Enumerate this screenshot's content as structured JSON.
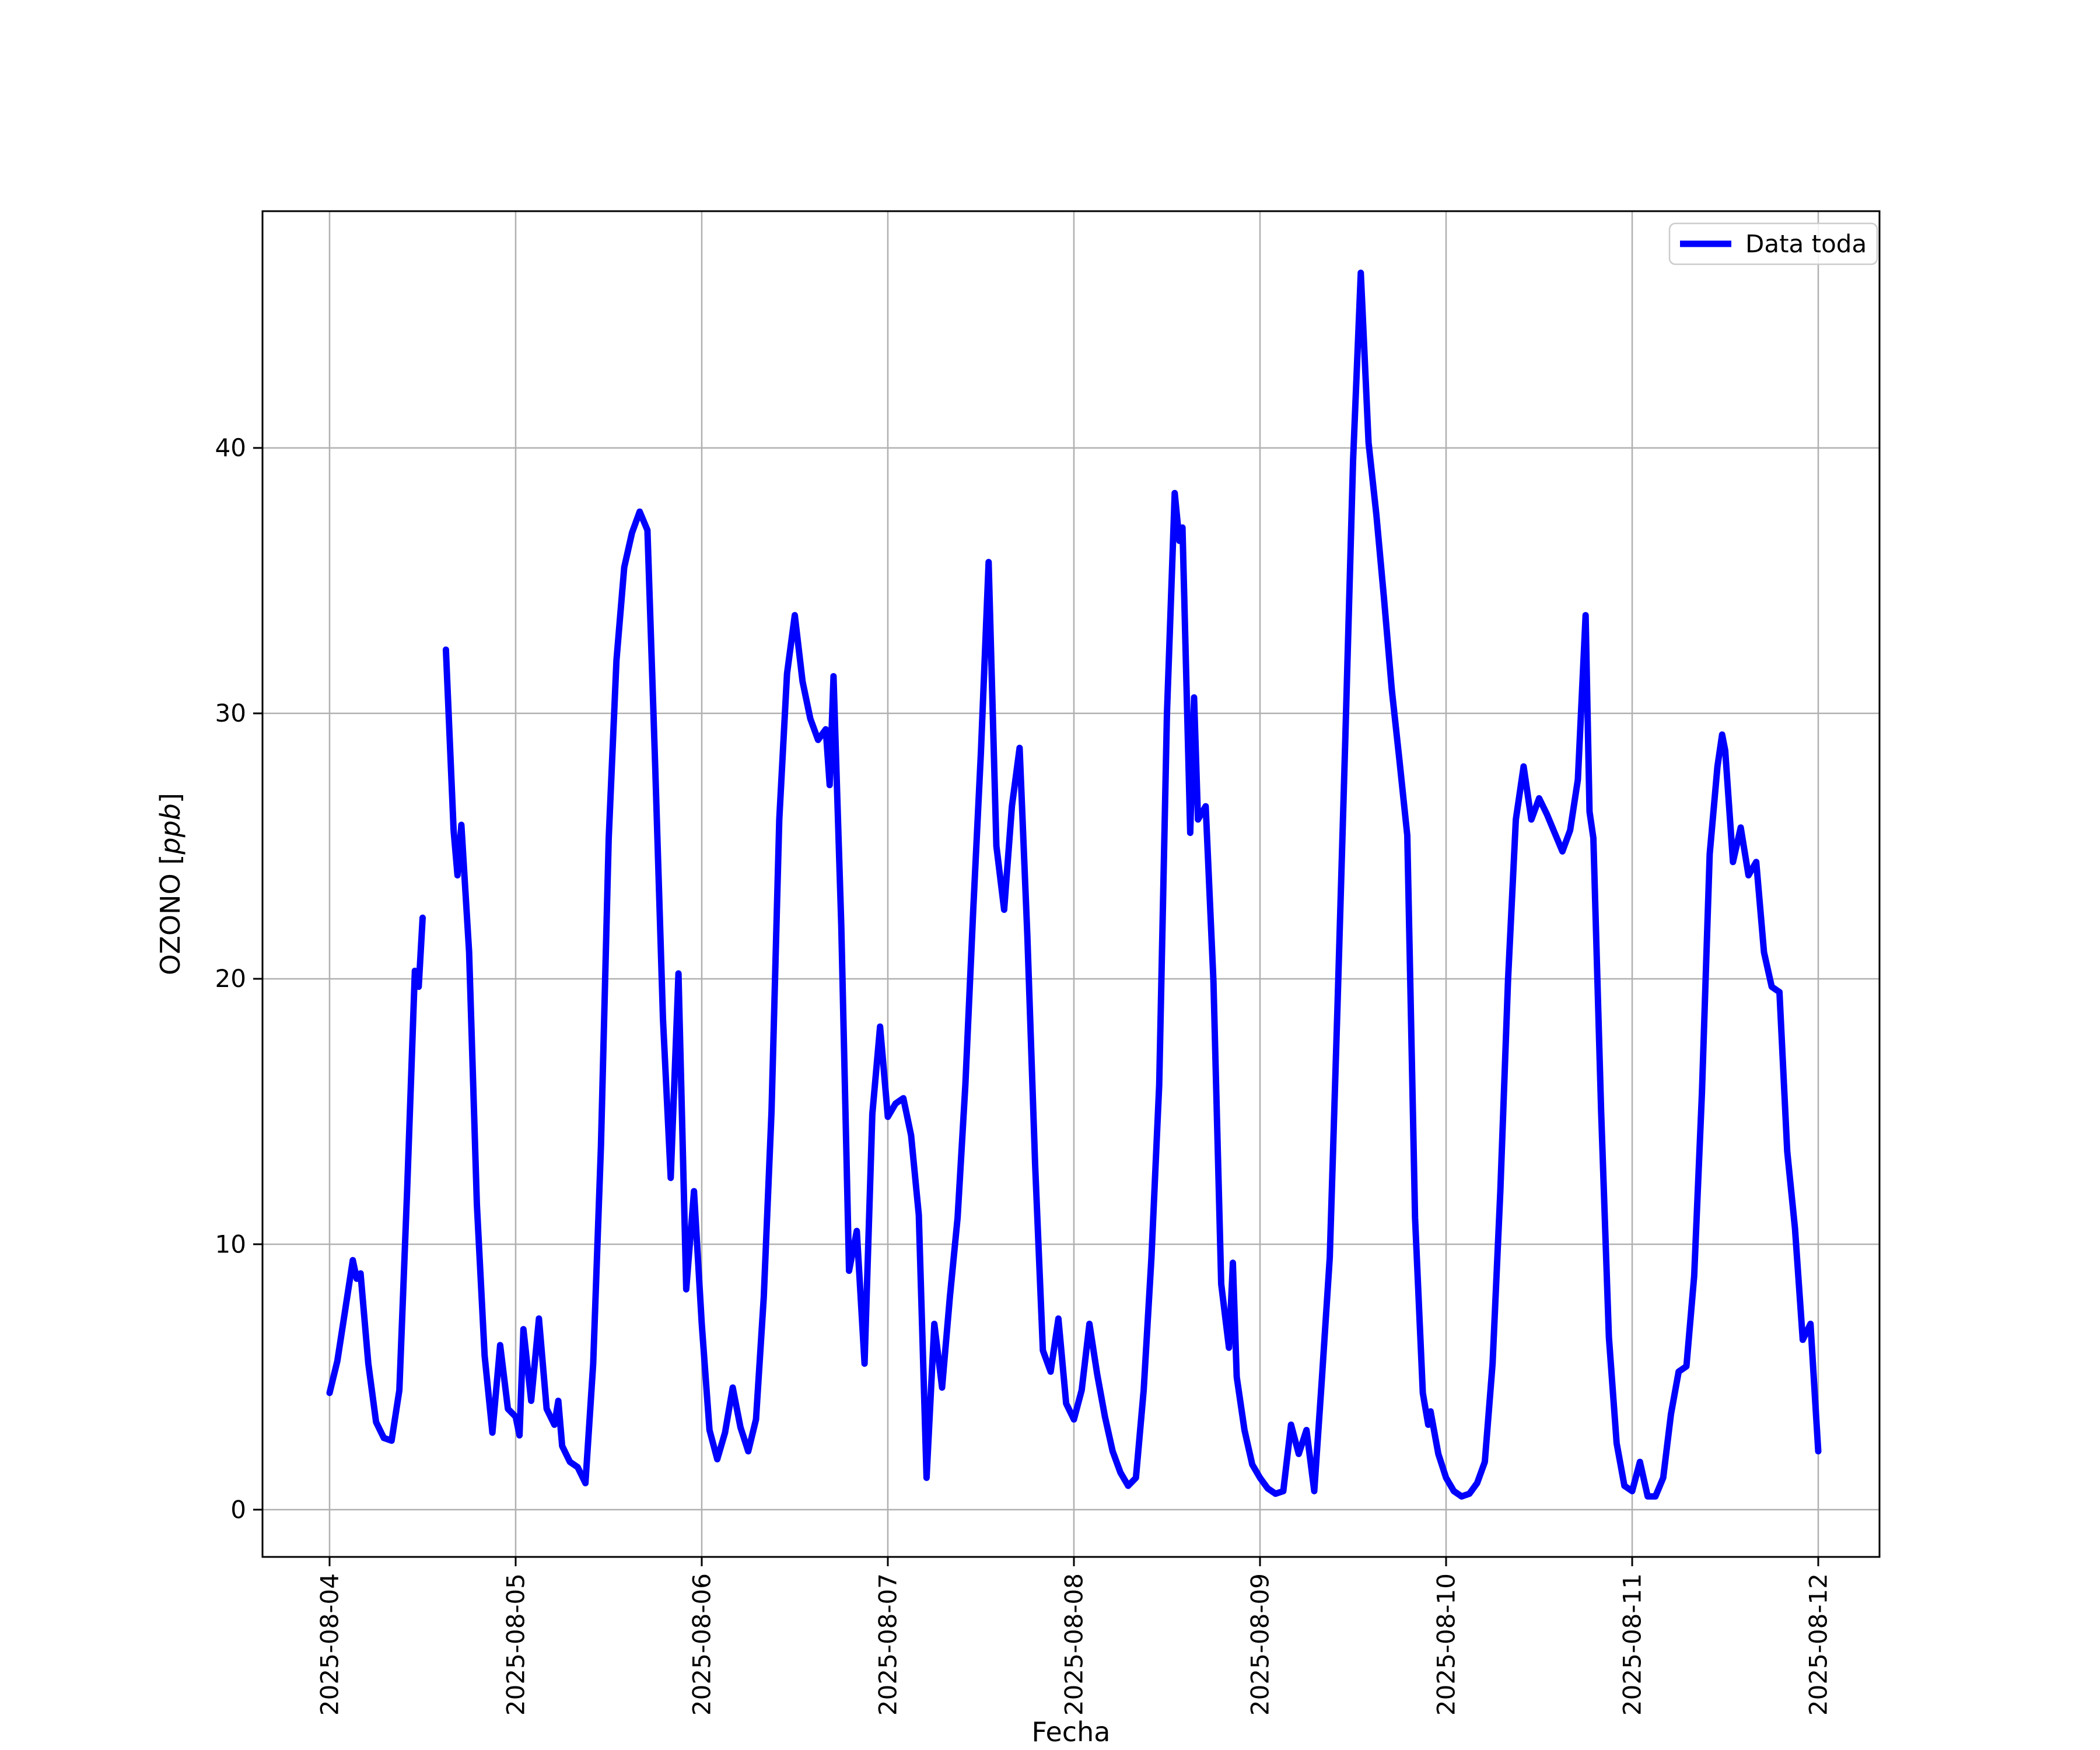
{
  "chart_data": {
    "type": "line",
    "title": "",
    "xlabel": "Fecha",
    "ylabel": "OZONO [ppb]",
    "ylabel_parts": {
      "prefix": "OZONO [",
      "unit": "ppb",
      "suffix": "]"
    },
    "legend": {
      "position": "upper right",
      "entries": [
        {
          "label": "Data toda",
          "color": "#0000ff"
        }
      ]
    },
    "grid": true,
    "grid_color": "#b0b0b0",
    "line_color": "#0000ff",
    "x_unit": "hours since 2025-08-04 00:00",
    "x_tick_hours": [
      0,
      24,
      48,
      72,
      96,
      120,
      144,
      168,
      192
    ],
    "x_tick_labels": [
      "2025-08-04",
      "2025-08-05",
      "2025-08-06",
      "2025-08-07",
      "2025-08-08",
      "2025-08-09",
      "2025-08-10",
      "2025-08-11",
      "2025-08-12"
    ],
    "y_ticks": [
      0,
      10,
      20,
      30,
      40
    ],
    "y_tick_labels": [
      "0",
      "10",
      "20",
      "30",
      "40"
    ],
    "xlim_hours": [
      -8.65,
      199.9
    ],
    "ylim": [
      -1.78,
      48.92
    ],
    "series": [
      {
        "name": "Data toda",
        "segments": [
          [
            [
              0,
              4.4
            ],
            [
              1,
              5.6
            ],
            [
              2,
              7.5
            ],
            [
              3,
              9.4
            ],
            [
              3.5,
              8.7
            ],
            [
              4,
              8.9
            ],
            [
              5,
              5.5
            ],
            [
              6,
              3.3
            ],
            [
              7,
              2.7
            ],
            [
              8,
              2.6
            ],
            [
              9,
              4.5
            ],
            [
              10,
              12
            ],
            [
              11,
              20.3
            ],
            [
              11.5,
              19.7
            ],
            [
              12,
              22.3
            ]
          ],
          [
            [
              15,
              32.4
            ],
            [
              16,
              25.6
            ],
            [
              16.5,
              23.9
            ],
            [
              17,
              25.8
            ],
            [
              18,
              21
            ],
            [
              19,
              11.5
            ],
            [
              20,
              5.8
            ],
            [
              21,
              2.9
            ],
            [
              22,
              6.2
            ],
            [
              23,
              3.8
            ],
            [
              24,
              3.5
            ],
            [
              24.5,
              2.8
            ],
            [
              25,
              6.8
            ],
            [
              26,
              4.1
            ],
            [
              27,
              7.2
            ],
            [
              28,
              3.8
            ],
            [
              29,
              3.2
            ],
            [
              29.5,
              4.1
            ],
            [
              30,
              2.4
            ],
            [
              31,
              1.8
            ],
            [
              32,
              1.6
            ],
            [
              33,
              1.0
            ],
            [
              34,
              5.5
            ],
            [
              35,
              13.7
            ],
            [
              36,
              25.3
            ],
            [
              37,
              32
            ],
            [
              38,
              35.5
            ],
            [
              39,
              36.8
            ],
            [
              40,
              37.6
            ],
            [
              41,
              36.9
            ],
            [
              42,
              28
            ],
            [
              43,
              18.5
            ],
            [
              44,
              12.5
            ],
            [
              45,
              20.2
            ],
            [
              46,
              8.3
            ],
            [
              47,
              12
            ],
            [
              48,
              7
            ],
            [
              49,
              3
            ],
            [
              50,
              1.9
            ],
            [
              51,
              2.9
            ],
            [
              52,
              4.6
            ],
            [
              53,
              3.1
            ],
            [
              54,
              2.2
            ],
            [
              55,
              3.4
            ],
            [
              56,
              8
            ],
            [
              57,
              15
            ],
            [
              58,
              26
            ],
            [
              59,
              31.5
            ],
            [
              60,
              33.7
            ],
            [
              61,
              31.2
            ],
            [
              62,
              29.8
            ],
            [
              63,
              29
            ],
            [
              64,
              29.4
            ],
            [
              64.5,
              27.3
            ],
            [
              65,
              31.4
            ],
            [
              66,
              22
            ],
            [
              67,
              9
            ],
            [
              68,
              10.5
            ],
            [
              69,
              5.5
            ],
            [
              70,
              14.9
            ],
            [
              71,
              18.2
            ],
            [
              72,
              14.8
            ],
            [
              73,
              15.3
            ],
            [
              74,
              15.5
            ],
            [
              75,
              14.1
            ],
            [
              76,
              11.1
            ],
            [
              77,
              1.2
            ],
            [
              78,
              7
            ],
            [
              79,
              4.6
            ],
            [
              80,
              8
            ],
            [
              81,
              11
            ],
            [
              82,
              16
            ],
            [
              83,
              22.5
            ],
            [
              84,
              28.5
            ],
            [
              85,
              35.7
            ],
            [
              86,
              25
            ],
            [
              87,
              22.6
            ],
            [
              88,
              26.5
            ],
            [
              89,
              28.7
            ],
            [
              90,
              21.6
            ],
            [
              91,
              13
            ],
            [
              92,
              6
            ],
            [
              93,
              5.2
            ],
            [
              94,
              7.2
            ],
            [
              95,
              4
            ],
            [
              96,
              3.4
            ],
            [
              97,
              4.5
            ],
            [
              98,
              7
            ],
            [
              99,
              5.1
            ],
            [
              100,
              3.5
            ],
            [
              101,
              2.2
            ],
            [
              102,
              1.4
            ],
            [
              103,
              0.9
            ],
            [
              104,
              1.2
            ],
            [
              105,
              4.5
            ],
            [
              106,
              9.5
            ],
            [
              107,
              16
            ],
            [
              108,
              30
            ],
            [
              109,
              38.3
            ],
            [
              109.6,
              36.5
            ],
            [
              110,
              37
            ],
            [
              111,
              25.5
            ],
            [
              111.5,
              30.6
            ],
            [
              112,
              26
            ],
            [
              113,
              26.5
            ],
            [
              114,
              19.9
            ],
            [
              115,
              8.5
            ],
            [
              116,
              6.1
            ],
            [
              116.5,
              9.3
            ],
            [
              117,
              5
            ],
            [
              118,
              3
            ],
            [
              119,
              1.7
            ],
            [
              120,
              1.2
            ],
            [
              121,
              0.8
            ],
            [
              122,
              0.6
            ],
            [
              123,
              0.7
            ],
            [
              124,
              3.2
            ],
            [
              125,
              2.1
            ],
            [
              126,
              3
            ],
            [
              127,
              0.7
            ],
            [
              128,
              5
            ],
            [
              129,
              9.5
            ],
            [
              130,
              19
            ],
            [
              131,
              29
            ],
            [
              132,
              39.5
            ],
            [
              133,
              46.6
            ],
            [
              134,
              40.2
            ],
            [
              135,
              37.5
            ],
            [
              136,
              34.3
            ],
            [
              137,
              30.9
            ],
            [
              138,
              28.2
            ],
            [
              139,
              25.4
            ],
            [
              140,
              11
            ],
            [
              141,
              4.4
            ],
            [
              141.7,
              3.2
            ],
            [
              142,
              3.7
            ],
            [
              143,
              2.1
            ],
            [
              144,
              1.2
            ],
            [
              145,
              0.7
            ],
            [
              146,
              0.5
            ],
            [
              147,
              0.6
            ],
            [
              148,
              1
            ],
            [
              149,
              1.8
            ],
            [
              150,
              5.5
            ],
            [
              151,
              12
            ],
            [
              152,
              20
            ],
            [
              153,
              26
            ],
            [
              154,
              28
            ],
            [
              155,
              26
            ],
            [
              156,
              26.8
            ],
            [
              157,
              26.2
            ],
            [
              158,
              25.5
            ],
            [
              159,
              24.8
            ],
            [
              160,
              25.6
            ],
            [
              161,
              27.5
            ],
            [
              162,
              33.7
            ],
            [
              162.5,
              26.3
            ],
            [
              163,
              25.3
            ],
            [
              164,
              15
            ],
            [
              165,
              6.5
            ],
            [
              166,
              2.5
            ],
            [
              167,
              0.9
            ],
            [
              168,
              0.7
            ],
            [
              169,
              1.8
            ],
            [
              170,
              0.5
            ],
            [
              171,
              0.5
            ],
            [
              172,
              1.2
            ],
            [
              173,
              3.6
            ],
            [
              174,
              5.2
            ],
            [
              175,
              5.4
            ],
            [
              176,
              8.8
            ],
            [
              177,
              15.7
            ],
            [
              178,
              24.7
            ],
            [
              179,
              28
            ],
            [
              179.6,
              29.2
            ],
            [
              180,
              28.6
            ],
            [
              181,
              24.4
            ],
            [
              182,
              25.7
            ],
            [
              183,
              23.9
            ],
            [
              184,
              24.4
            ],
            [
              185,
              21
            ],
            [
              186,
              19.7
            ],
            [
              187,
              19.5
            ],
            [
              188,
              13.5
            ],
            [
              189,
              10.6
            ],
            [
              190,
              6.4
            ],
            [
              191,
              7
            ],
            [
              192,
              2.2
            ]
          ]
        ]
      }
    ]
  }
}
